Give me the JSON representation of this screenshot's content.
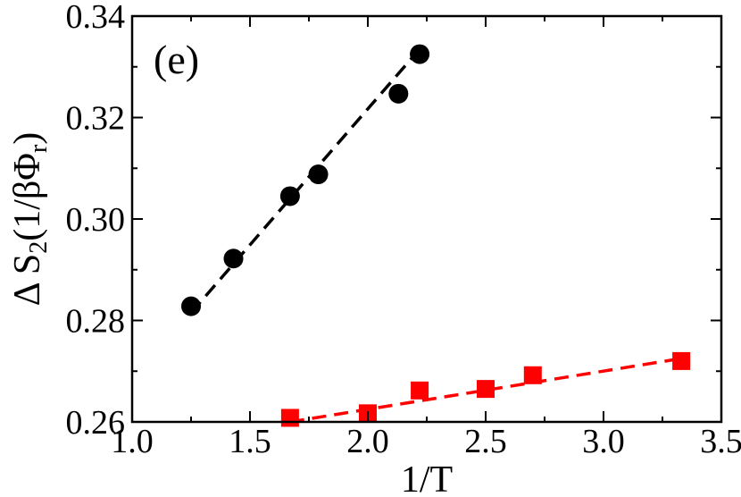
{
  "chart_data": {
    "type": "scatter",
    "panel_label": "(e)",
    "xlabel": "1/T",
    "ylabel": {
      "parts": [
        {
          "text": "Δ S",
          "style": "normal"
        },
        {
          "text": "2",
          "style": "sub"
        },
        {
          "text": "(1/βΦ",
          "style": "normal"
        },
        {
          "text": "r",
          "style": "sub"
        },
        {
          "text": ")",
          "style": "normal"
        }
      ]
    },
    "xlim": [
      1.0,
      3.5
    ],
    "ylim": [
      0.26,
      0.34
    ],
    "xticks": [
      {
        "value": 1.0,
        "label": "1.0"
      },
      {
        "value": 1.5,
        "label": "1.5"
      },
      {
        "value": 2.0,
        "label": "2.0"
      },
      {
        "value": 2.5,
        "label": "2.5"
      },
      {
        "value": 3.0,
        "label": "3.0"
      },
      {
        "value": 3.5,
        "label": "3.5"
      }
    ],
    "yticks": [
      {
        "value": 0.26,
        "label": "0.26"
      },
      {
        "value": 0.28,
        "label": "0.28"
      },
      {
        "value": 0.3,
        "label": "0.30"
      },
      {
        "value": 0.32,
        "label": "0.32"
      },
      {
        "value": 0.34,
        "label": "0.34"
      }
    ],
    "grid": false,
    "series": [
      {
        "name": "black-circles",
        "marker": "circle",
        "color": "#000000",
        "x": [
          1.25,
          1.43,
          1.67,
          1.79,
          2.13,
          2.22
        ],
        "y": [
          0.2828,
          0.2922,
          0.3045,
          0.3088,
          0.3247,
          0.3325
        ],
        "fit": {
          "x": [
            1.25,
            2.22
          ],
          "y": [
            0.2815,
            0.3335
          ]
        }
      },
      {
        "name": "red-squares",
        "marker": "square",
        "color": "#ff0000",
        "x": [
          1.67,
          2.0,
          2.22,
          2.5,
          2.7,
          3.33
        ],
        "y": [
          0.2608,
          0.2617,
          0.2662,
          0.2665,
          0.2692,
          0.272
        ],
        "fit": {
          "x": [
            1.67,
            3.33
          ],
          "y": [
            0.26,
            0.2725
          ]
        }
      }
    ]
  }
}
